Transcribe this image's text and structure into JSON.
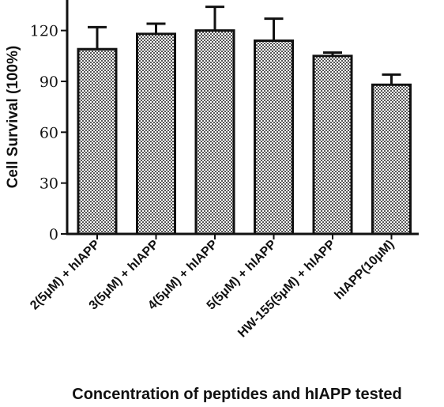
{
  "chart_data": {
    "type": "bar",
    "categories": [
      "2(5μM) + hIAPP",
      "3(5μM) + hIAPP",
      "4(5μM) + hIAPP",
      "5(5μM) + hIAPP",
      "HW-155(5μM) + hIAPP",
      "hIAPP(10μM)"
    ],
    "values": [
      109,
      118,
      120,
      114,
      105,
      88
    ],
    "error_upper": [
      122,
      124,
      134,
      127,
      107,
      94
    ],
    "xlabel": "Concentration of peptides and hIAPP tested",
    "ylabel": "Cell Survival (100%)",
    "ylim": [
      0,
      138
    ],
    "yticks": [
      "0",
      "30",
      "60",
      "90",
      "120"
    ],
    "grid": false,
    "bar_fill": "stippled-gray",
    "colors": {
      "bar_fill": "#9a9a9a",
      "bar_stroke": "#111111",
      "axis": "#111111"
    }
  }
}
